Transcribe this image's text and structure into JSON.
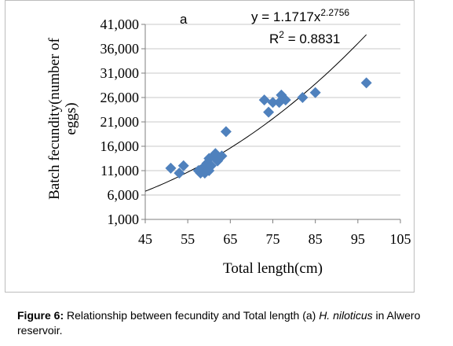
{
  "chart_data": {
    "type": "scatter",
    "panel_label": "a",
    "xlabel": "Total length(cm)",
    "ylabel": "Batch fecundity(number of eggs)",
    "xlim": [
      45,
      105
    ],
    "ylim": [
      1000,
      41000
    ],
    "x_ticks": [
      "45",
      "55",
      "65",
      "75",
      "85",
      "95",
      "105"
    ],
    "y_ticks": [
      "1,000",
      "6,000",
      "11,000",
      "16,000",
      "21,000",
      "26,000",
      "31,000",
      "36,000",
      "41,000"
    ],
    "x_tick_values": [
      45,
      55,
      65,
      75,
      85,
      95,
      105
    ],
    "y_tick_values": [
      1000,
      6000,
      11000,
      16000,
      21000,
      26000,
      31000,
      36000,
      41000
    ],
    "grid": "horizontal",
    "marker_color": "#4f81bd",
    "trendline": {
      "type": "power",
      "coef": 1.1717,
      "exponent": 2.2756,
      "x_range": [
        45,
        97
      ],
      "equation_prefix": "y = 1.1717x",
      "equation_exponent": "2.2756",
      "r2_prefix": "R",
      "r2_sup": "2",
      "r2_value": " = 0.8831"
    },
    "points": [
      [
        51,
        11500
      ],
      [
        53,
        10500
      ],
      [
        54,
        12000
      ],
      [
        57.5,
        11000
      ],
      [
        58,
        10500
      ],
      [
        58.5,
        11500
      ],
      [
        59,
        10500
      ],
      [
        59.5,
        12500
      ],
      [
        60,
        11000
      ],
      [
        60,
        13500
      ],
      [
        60.5,
        12000
      ],
      [
        61,
        14000
      ],
      [
        61.5,
        14500
      ],
      [
        62,
        13000
      ],
      [
        63,
        14000
      ],
      [
        64,
        19000
      ],
      [
        73,
        25500
      ],
      [
        74,
        23000
      ],
      [
        75,
        25000
      ],
      [
        76.5,
        25000
      ],
      [
        77,
        26500
      ],
      [
        78,
        25500
      ],
      [
        82,
        26000
      ],
      [
        85,
        27000
      ],
      [
        97,
        29000
      ]
    ]
  },
  "caption": {
    "fig_label": "Figure 6:",
    "text_before": " Relationship between fecundity and Total length (a) ",
    "species": "H. niloticus",
    "text_after": " in Alwero reservoir."
  }
}
